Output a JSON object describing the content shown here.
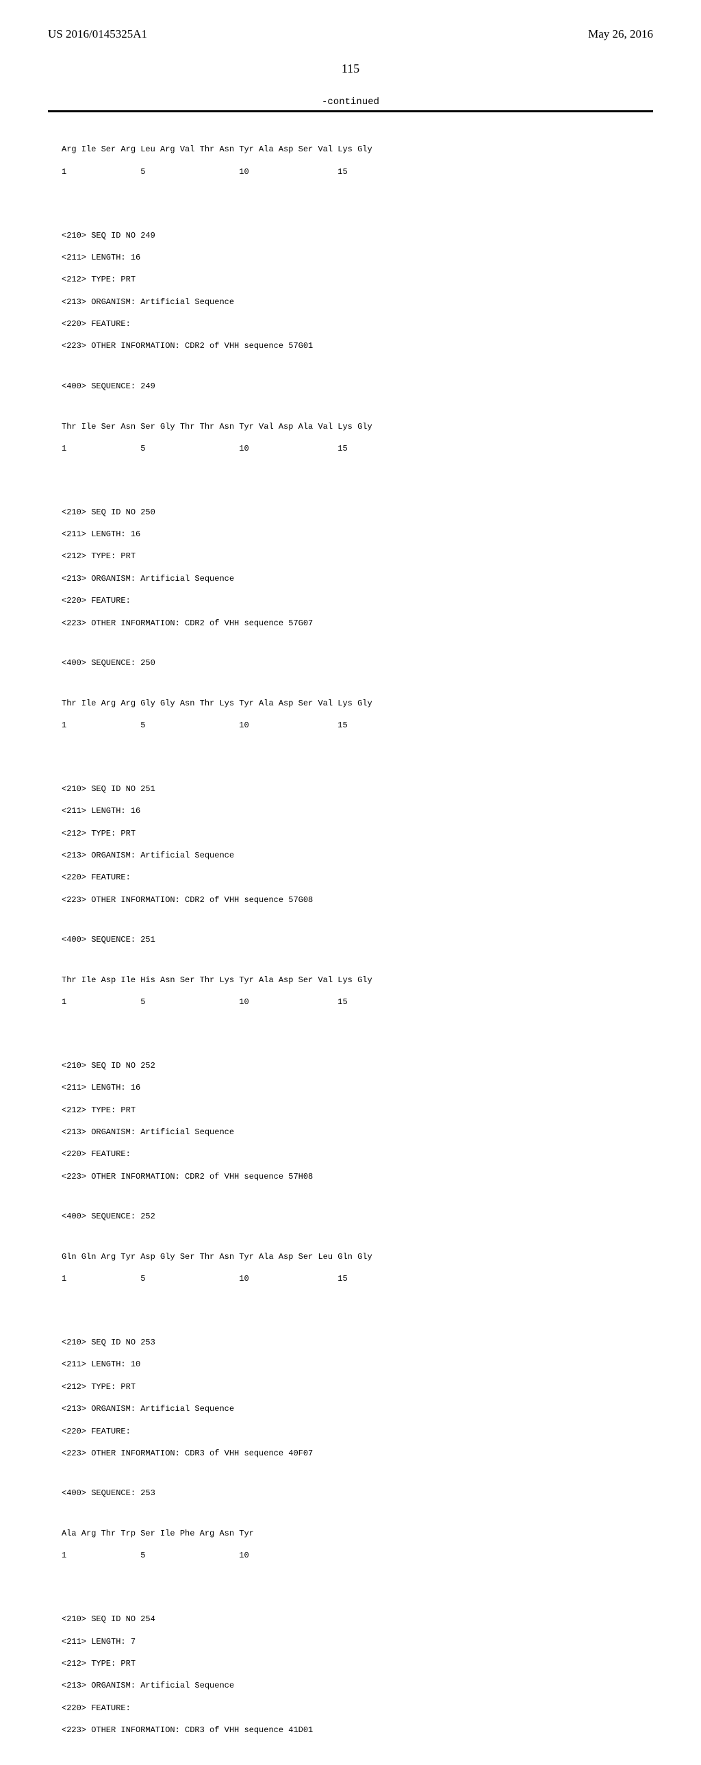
{
  "header": {
    "pub_number": "US 2016/0145325A1",
    "pub_date": "May 26, 2016"
  },
  "page_number": "115",
  "continued_label": "-continued",
  "sequences": [
    {
      "residues": "Arg Ile Ser Arg Leu Arg Val Thr Asn Tyr Ala Asp Ser Val Lys Gly",
      "positions": "1               5                   10                  15"
    },
    {
      "meta": [
        "<210> SEQ ID NO 249",
        "<211> LENGTH: 16",
        "<212> TYPE: PRT",
        "<213> ORGANISM: Artificial Sequence",
        "<220> FEATURE:",
        "<223> OTHER INFORMATION: CDR2 of VHH sequence 57G01"
      ],
      "seq_header": "<400> SEQUENCE: 249",
      "residues": "Thr Ile Ser Asn Ser Gly Thr Thr Asn Tyr Val Asp Ala Val Lys Gly",
      "positions": "1               5                   10                  15"
    },
    {
      "meta": [
        "<210> SEQ ID NO 250",
        "<211> LENGTH: 16",
        "<212> TYPE: PRT",
        "<213> ORGANISM: Artificial Sequence",
        "<220> FEATURE:",
        "<223> OTHER INFORMATION: CDR2 of VHH sequence 57G07"
      ],
      "seq_header": "<400> SEQUENCE: 250",
      "residues": "Thr Ile Arg Arg Gly Gly Asn Thr Lys Tyr Ala Asp Ser Val Lys Gly",
      "positions": "1               5                   10                  15"
    },
    {
      "meta": [
        "<210> SEQ ID NO 251",
        "<211> LENGTH: 16",
        "<212> TYPE: PRT",
        "<213> ORGANISM: Artificial Sequence",
        "<220> FEATURE:",
        "<223> OTHER INFORMATION: CDR2 of VHH sequence 57G08"
      ],
      "seq_header": "<400> SEQUENCE: 251",
      "residues": "Thr Ile Asp Ile His Asn Ser Thr Lys Tyr Ala Asp Ser Val Lys Gly",
      "positions": "1               5                   10                  15"
    },
    {
      "meta": [
        "<210> SEQ ID NO 252",
        "<211> LENGTH: 16",
        "<212> TYPE: PRT",
        "<213> ORGANISM: Artificial Sequence",
        "<220> FEATURE:",
        "<223> OTHER INFORMATION: CDR2 of VHH sequence 57H08"
      ],
      "seq_header": "<400> SEQUENCE: 252",
      "residues": "Gln Gln Arg Tyr Asp Gly Ser Thr Asn Tyr Ala Asp Ser Leu Gln Gly",
      "positions": "1               5                   10                  15"
    },
    {
      "meta": [
        "<210> SEQ ID NO 253",
        "<211> LENGTH: 10",
        "<212> TYPE: PRT",
        "<213> ORGANISM: Artificial Sequence",
        "<220> FEATURE:",
        "<223> OTHER INFORMATION: CDR3 of VHH sequence 40F07"
      ],
      "seq_header": "<400> SEQUENCE: 253",
      "residues": "Ala Arg Thr Trp Ser Ile Phe Arg Asn Tyr",
      "positions": "1               5                   10"
    },
    {
      "meta": [
        "<210> SEQ ID NO 254",
        "<211> LENGTH: 7",
        "<212> TYPE: PRT",
        "<213> ORGANISM: Artificial Sequence",
        "<220> FEATURE:",
        "<223> OTHER INFORMATION: CDR3 of VHH sequence 41D01"
      ]
    }
  ]
}
